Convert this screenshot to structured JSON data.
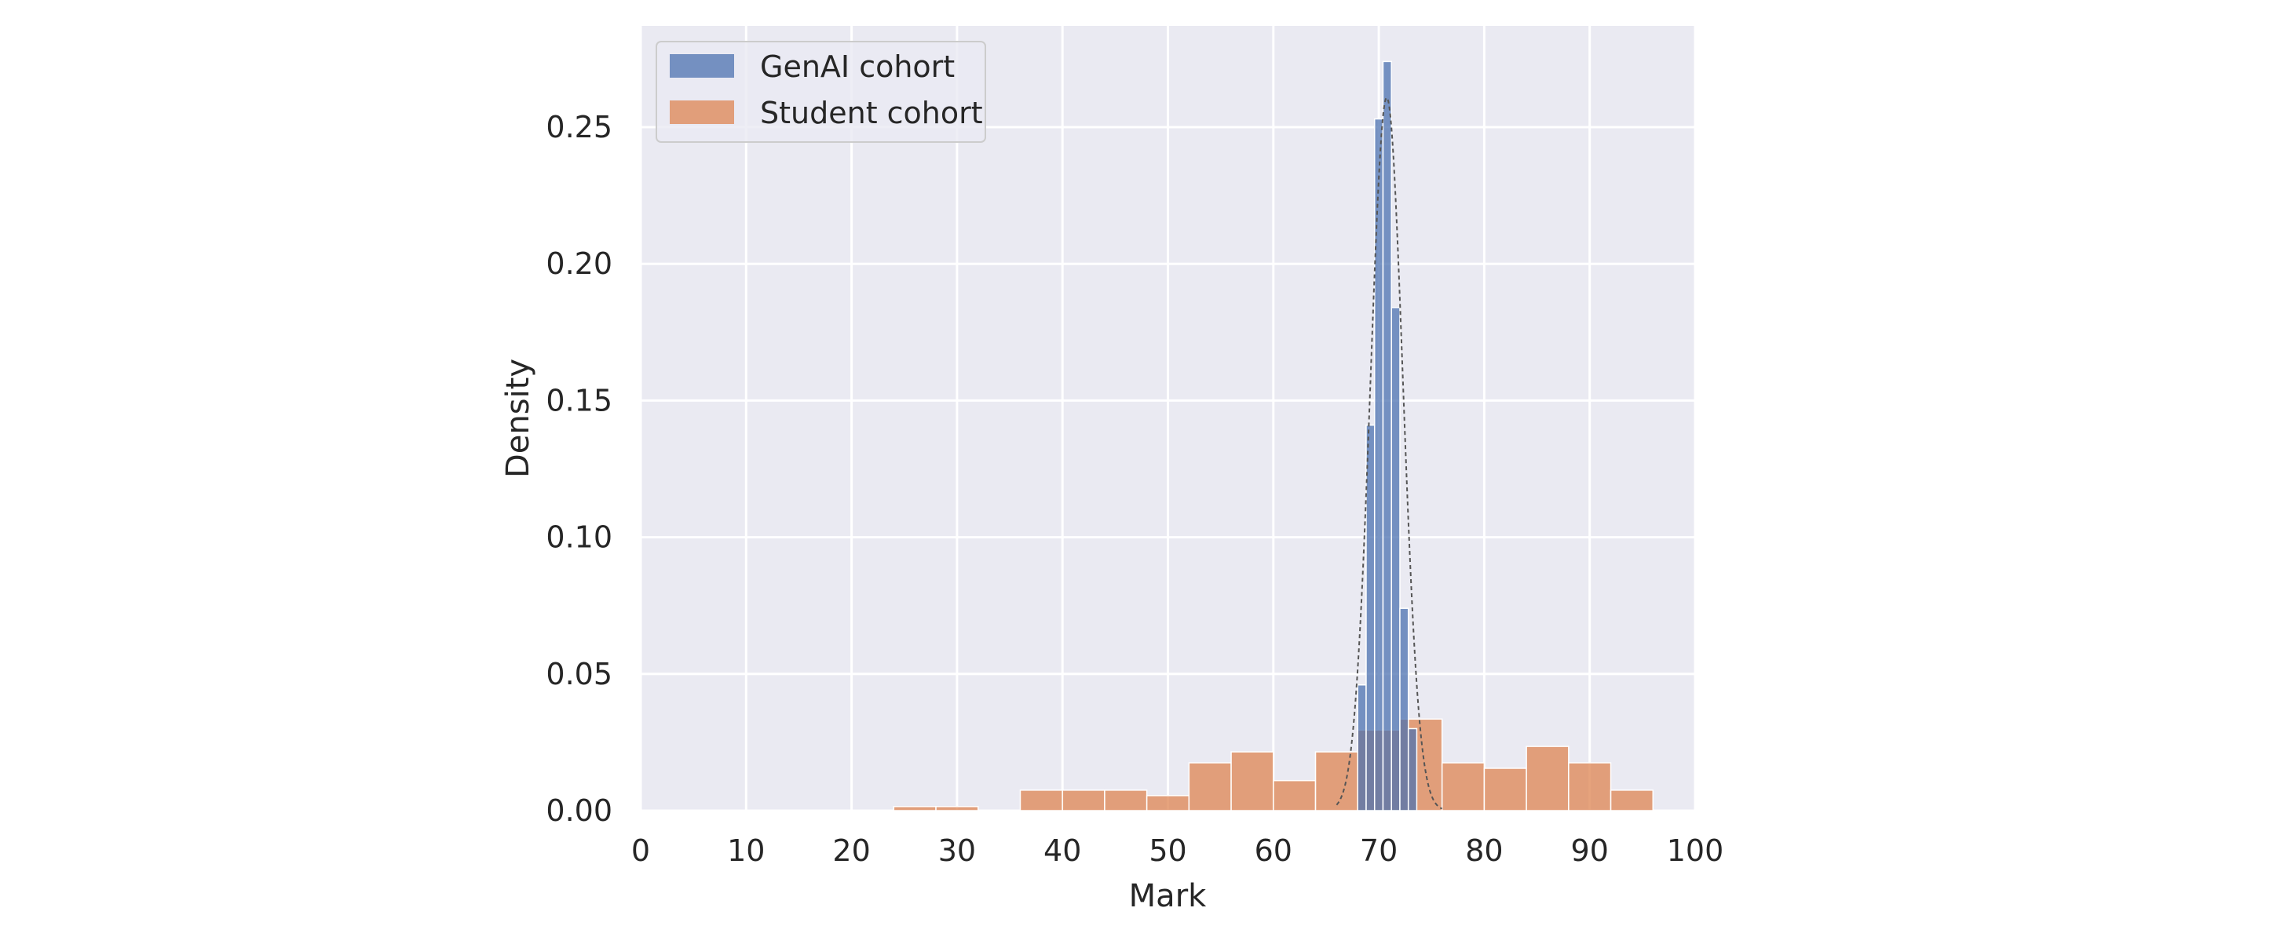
{
  "chart_data": {
    "type": "bar",
    "title": "",
    "xlabel": "Mark",
    "ylabel": "Density",
    "xlim": [
      0,
      100
    ],
    "ylim": [
      0,
      0.2875
    ],
    "x_ticks": [
      "0",
      "10",
      "20",
      "30",
      "40",
      "50",
      "60",
      "70",
      "80",
      "90",
      "100"
    ],
    "y_ticks": [
      "0.00",
      "0.05",
      "0.10",
      "0.15",
      "0.20",
      "0.25"
    ],
    "grid": true,
    "legend_placement": "top-left",
    "series": [
      {
        "name": "GenAI cohort",
        "color": "#4c72b0",
        "bins": [
          [
            68.0,
            68.8,
            0.046
          ],
          [
            68.8,
            69.6,
            0.141
          ],
          [
            69.6,
            70.4,
            0.253
          ],
          [
            70.4,
            71.2,
            0.274
          ],
          [
            71.2,
            72.0,
            0.184
          ],
          [
            72.0,
            72.8,
            0.074
          ],
          [
            72.8,
            73.6,
            0.03
          ]
        ]
      },
      {
        "name": "Student cohort",
        "color": "#dd8452",
        "bins": [
          [
            24,
            28,
            0.0015
          ],
          [
            28,
            32,
            0.0015
          ],
          [
            32,
            36,
            0.0
          ],
          [
            36,
            40,
            0.0075
          ],
          [
            40,
            44,
            0.0075
          ],
          [
            44,
            48,
            0.0075
          ],
          [
            48,
            52,
            0.0055
          ],
          [
            52,
            56,
            0.0175
          ],
          [
            56,
            60,
            0.0215
          ],
          [
            60,
            64,
            0.011
          ],
          [
            64,
            68,
            0.0215
          ],
          [
            68,
            72,
            0.0295
          ],
          [
            72,
            76,
            0.0335
          ],
          [
            76,
            80,
            0.0175
          ],
          [
            80,
            84,
            0.0155
          ],
          [
            84,
            88,
            0.0235
          ],
          [
            88,
            92,
            0.0175
          ],
          [
            92,
            96,
            0.0075
          ]
        ]
      }
    ],
    "fit_curve": {
      "style": "dashed",
      "color": "#555555",
      "mean": 70.75,
      "sd": 1.53
    }
  }
}
